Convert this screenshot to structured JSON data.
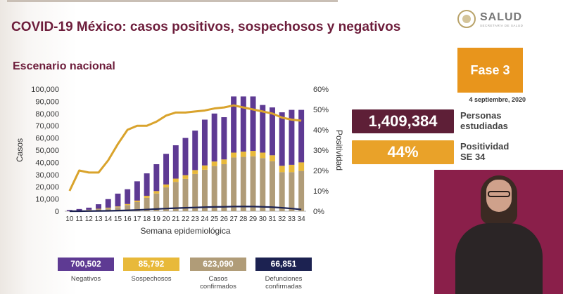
{
  "header": {
    "title": "COVID-19 México: casos positivos, sospechosos y negativos",
    "subtitle": "Escenario nacional"
  },
  "logo": {
    "brand": "SALUD",
    "sub": "SECRETARÍA DE SALUD"
  },
  "phase": {
    "label": "Fase 3",
    "date": "4 septiembre, 2020"
  },
  "stats": {
    "studied": {
      "value": "1,409,384",
      "label_line1": "Personas",
      "label_line2": "estudiadas"
    },
    "positivity": {
      "value": "44%",
      "label_line1": "Positividad",
      "label_line2": "SE 34"
    }
  },
  "legend": [
    {
      "value": "700,502",
      "label": "Negativos"
    },
    {
      "value": "85,792",
      "label": "Sospechosos"
    },
    {
      "value": "623,090",
      "label": "Casos confirmados"
    },
    {
      "value": "66,851",
      "label": "Defunciones confirmadas"
    }
  ],
  "colors": {
    "negativos": "#5e3a93",
    "sospechosos": "#e8b93a",
    "confirmados": "#b09c78",
    "defunciones": "#1c2251",
    "positividad": "#d9a32c",
    "title": "#6d1d3b",
    "phase": "#e8951c",
    "studied_box": "#5e1f37",
    "positivity_box": "#e9a229"
  },
  "chart_data": {
    "type": "bar",
    "stacked": true,
    "title": "Escenario nacional",
    "xlabel": "Semana epidemiológica",
    "ylabel": "Casos",
    "y2label": "Positividad",
    "ylim": [
      0,
      100000
    ],
    "y2lim": [
      0,
      60
    ],
    "yticks": [
      "0",
      "10,000",
      "20,000",
      "30,000",
      "40,000",
      "50,000",
      "60,000",
      "70,000",
      "80,000",
      "90,000",
      "100,000"
    ],
    "y2ticks": [
      "0%",
      "10%",
      "20%",
      "30%",
      "40%",
      "50%",
      "60%"
    ],
    "categories": [
      "10",
      "11",
      "12",
      "13",
      "14",
      "15",
      "16",
      "17",
      "18",
      "19",
      "20",
      "21",
      "22",
      "23",
      "24",
      "25",
      "26",
      "27",
      "28",
      "29",
      "30",
      "31",
      "32",
      "33",
      "34"
    ],
    "series": [
      {
        "name": "Casos confirmados",
        "kind": "bar",
        "values": [
          100,
          400,
          1000,
          1700,
          2400,
          3300,
          5000,
          7500,
          11000,
          14500,
          19500,
          24000,
          26500,
          30500,
          34000,
          37000,
          38500,
          44000,
          44500,
          45000,
          43500,
          41000,
          32000,
          32000,
          33000
        ]
      },
      {
        "name": "Sospechosos",
        "kind": "bar",
        "values": [
          0,
          100,
          200,
          300,
          500,
          600,
          900,
          1200,
          1600,
          2000,
          2400,
          2700,
          3000,
          3200,
          3500,
          3700,
          3900,
          4000,
          4300,
          4400,
          4500,
          4800,
          5200,
          6000,
          7000
        ]
      },
      {
        "name": "Negativos",
        "kind": "bar",
        "values": [
          900,
          1300,
          1700,
          3700,
          7000,
          10500,
          12100,
          15800,
          18400,
          22000,
          25100,
          27300,
          30500,
          32300,
          37500,
          39300,
          34600,
          46000,
          45200,
          44600,
          39000,
          39200,
          43800,
          45000,
          43000
        ]
      },
      {
        "name": "Defunciones confirmadas",
        "kind": "line",
        "axis": "y",
        "values": [
          0,
          0,
          100,
          200,
          300,
          500,
          700,
          1000,
          1400,
          1800,
          2200,
          2500,
          2800,
          3000,
          3300,
          3500,
          3600,
          3800,
          3900,
          3800,
          3600,
          3300,
          2800,
          2200,
          1400
        ]
      },
      {
        "name": "Positividad",
        "kind": "line",
        "axis": "y2",
        "values": [
          10,
          20,
          19,
          19,
          25,
          33,
          40,
          42,
          42,
          44,
          47,
          48.5,
          48.5,
          49,
          49.5,
          50.5,
          51,
          52,
          51,
          50,
          49,
          48,
          46,
          45,
          44.5
        ]
      }
    ]
  }
}
